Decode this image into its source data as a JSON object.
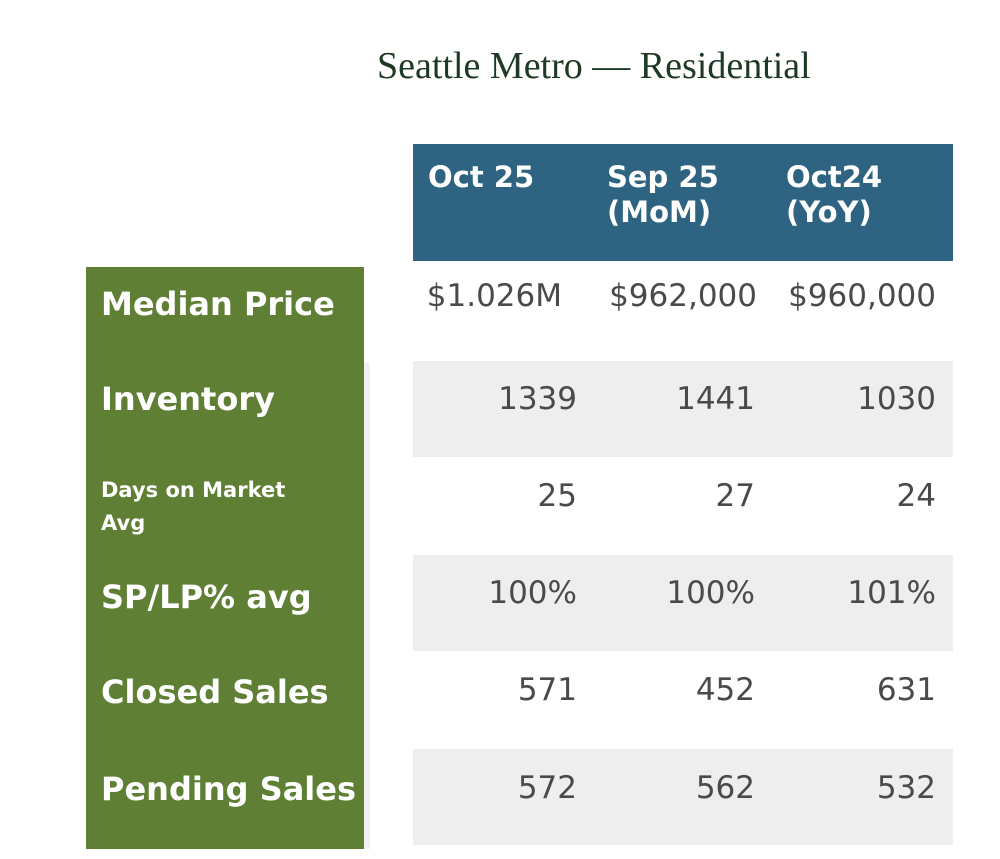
{
  "title": "Seattle Metro — Residential",
  "columns": [
    {
      "line1": "Oct 25",
      "line2": ""
    },
    {
      "line1": "Sep 25",
      "line2": "(MoM)"
    },
    {
      "line1": "Oct24",
      "line2": "(YoY)"
    }
  ],
  "rows": [
    {
      "label": "Median Price",
      "values": [
        "$1.026M",
        "$962,000",
        "$960,000"
      ]
    },
    {
      "label": "Inventory",
      "values": [
        "1339",
        "1441",
        "1030"
      ]
    },
    {
      "label_line1": "Days on Market",
      "label_line2": "Avg",
      "values": [
        "25",
        "27",
        "24"
      ]
    },
    {
      "label": "SP/LP% avg",
      "values": [
        "100%",
        "100%",
        "101%"
      ]
    },
    {
      "label": "Closed Sales",
      "values": [
        "571",
        "452",
        "631"
      ]
    },
    {
      "label": "Pending Sales",
      "values": [
        "572",
        "562",
        "532"
      ]
    }
  ],
  "colors": {
    "header_bg": "#2e6482",
    "label_bg": "#5e7f34",
    "band_bg": "#eeeeee",
    "title": "#1e3a24"
  }
}
